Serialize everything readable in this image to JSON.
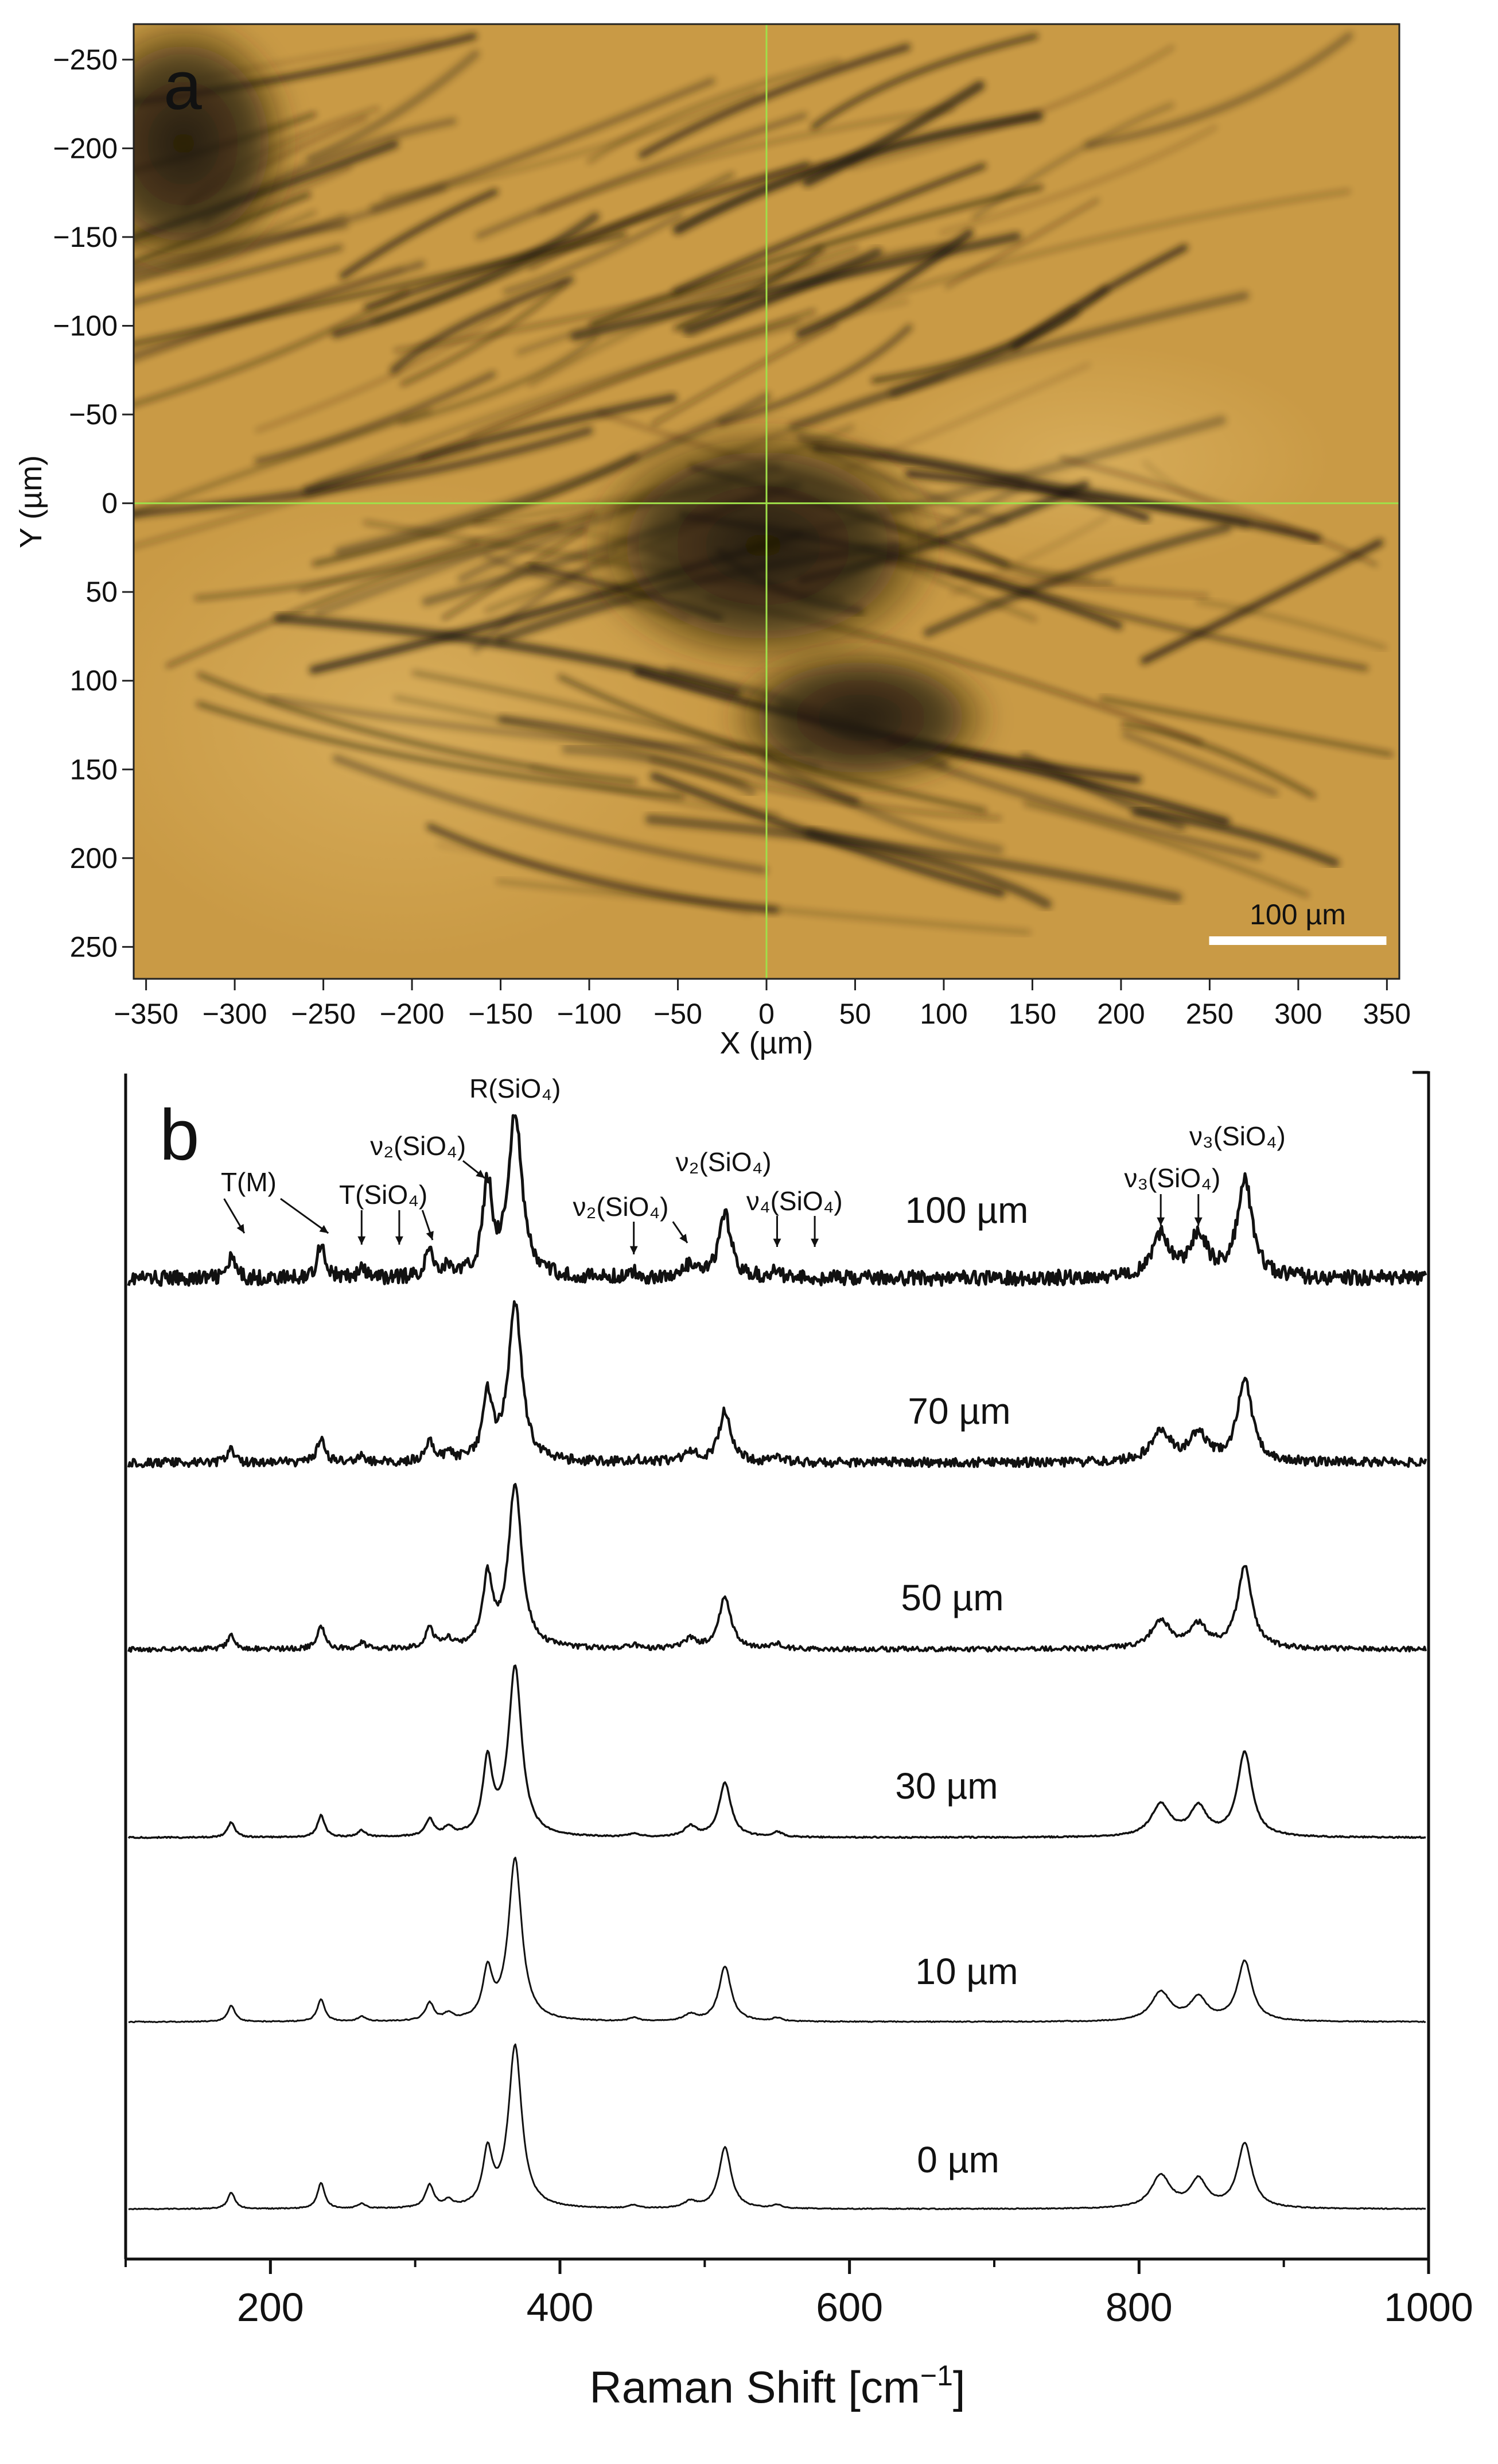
{
  "panel_a": {
    "letter": "a",
    "xlabel": "X (µm)",
    "ylabel": "Y (µm)",
    "x_ticks": [
      -350,
      -300,
      -250,
      -200,
      -150,
      -100,
      -50,
      0,
      50,
      100,
      150,
      200,
      250,
      300,
      350
    ],
    "y_ticks": [
      -250,
      -200,
      -150,
      -100,
      -50,
      0,
      50,
      100,
      150,
      200,
      250
    ],
    "xlim": [
      -357,
      357
    ],
    "ylim": [
      -270,
      268
    ],
    "scalebar_label": "100 µm",
    "scalebar_length_um": 100,
    "crosshair": {
      "x": 0,
      "y": 0
    },
    "image_colors": {
      "base": "#c99a45",
      "dark": "#1e1808",
      "crosshair": "#9fe04a"
    }
  },
  "panel_b": {
    "letter": "b",
    "xlabel_main": "Raman Shift [cm",
    "xlabel_sup": "−1",
    "xlabel_end": "]",
    "x_ticks": [
      200,
      400,
      600,
      800,
      1000
    ],
    "xlim": [
      100,
      1000
    ]
  },
  "chart_data": {
    "type": "line",
    "x_range": [
      100,
      1000
    ],
    "peaks_cm1": [
      173,
      235,
      263,
      310,
      323,
      350,
      369,
      451,
      490,
      514,
      550,
      815,
      841,
      873
    ],
    "series": [
      {
        "name": "100 µm",
        "heights": [
          0.12,
          0.22,
          0.05,
          0.16,
          0.06,
          0.55,
          1.0,
          0.03,
          0.07,
          0.38,
          0.04,
          0.25,
          0.25,
          0.6
        ],
        "noise": 0.045
      },
      {
        "name": "70 µm",
        "heights": [
          0.08,
          0.15,
          0.04,
          0.13,
          0.05,
          0.4,
          1.0,
          0.02,
          0.06,
          0.33,
          0.03,
          0.2,
          0.18,
          0.52
        ],
        "noise": 0.03
      },
      {
        "name": "50 µm",
        "heights": [
          0.08,
          0.14,
          0.04,
          0.12,
          0.05,
          0.42,
          1.0,
          0.02,
          0.06,
          0.32,
          0.03,
          0.17,
          0.14,
          0.5
        ],
        "noise": 0.015
      },
      {
        "name": "30 µm",
        "heights": [
          0.09,
          0.13,
          0.04,
          0.1,
          0.05,
          0.43,
          1.0,
          0.02,
          0.06,
          0.32,
          0.03,
          0.19,
          0.17,
          0.5
        ],
        "noise": 0.004
      },
      {
        "name": "10 µm",
        "heights": [
          0.1,
          0.14,
          0.03,
          0.11,
          0.04,
          0.29,
          1.0,
          0.02,
          0.04,
          0.34,
          0.02,
          0.18,
          0.14,
          0.37
        ],
        "noise": 0.003
      },
      {
        "name": "0 µm",
        "heights": [
          0.1,
          0.16,
          0.03,
          0.14,
          0.04,
          0.33,
          1.0,
          0.02,
          0.04,
          0.38,
          0.02,
          0.2,
          0.17,
          0.4
        ],
        "noise": 0.003
      }
    ],
    "annotations": [
      {
        "text": "R(SiO₄)",
        "x": 369
      },
      {
        "text": "T(M)",
        "targets": [
          173,
          235
        ]
      },
      {
        "text": "T(SiO₄)",
        "targets": [
          263,
          289,
          310
        ]
      },
      {
        "text": "ν₂(SiO₄)",
        "targets": [
          350
        ]
      },
      {
        "text": "ν₂(SiO₄)",
        "targets": [
          451,
          490
        ]
      },
      {
        "text": "ν₂(SiO₄)",
        "targets": [
          514
        ]
      },
      {
        "text": "ν₄(SiO₄)",
        "targets": [
          550,
          576
        ]
      },
      {
        "text": "ν₃(SiO₄)",
        "targets": [
          815,
          841
        ]
      },
      {
        "text": "ν₃(SiO₄)",
        "targets": [
          873
        ]
      }
    ]
  }
}
